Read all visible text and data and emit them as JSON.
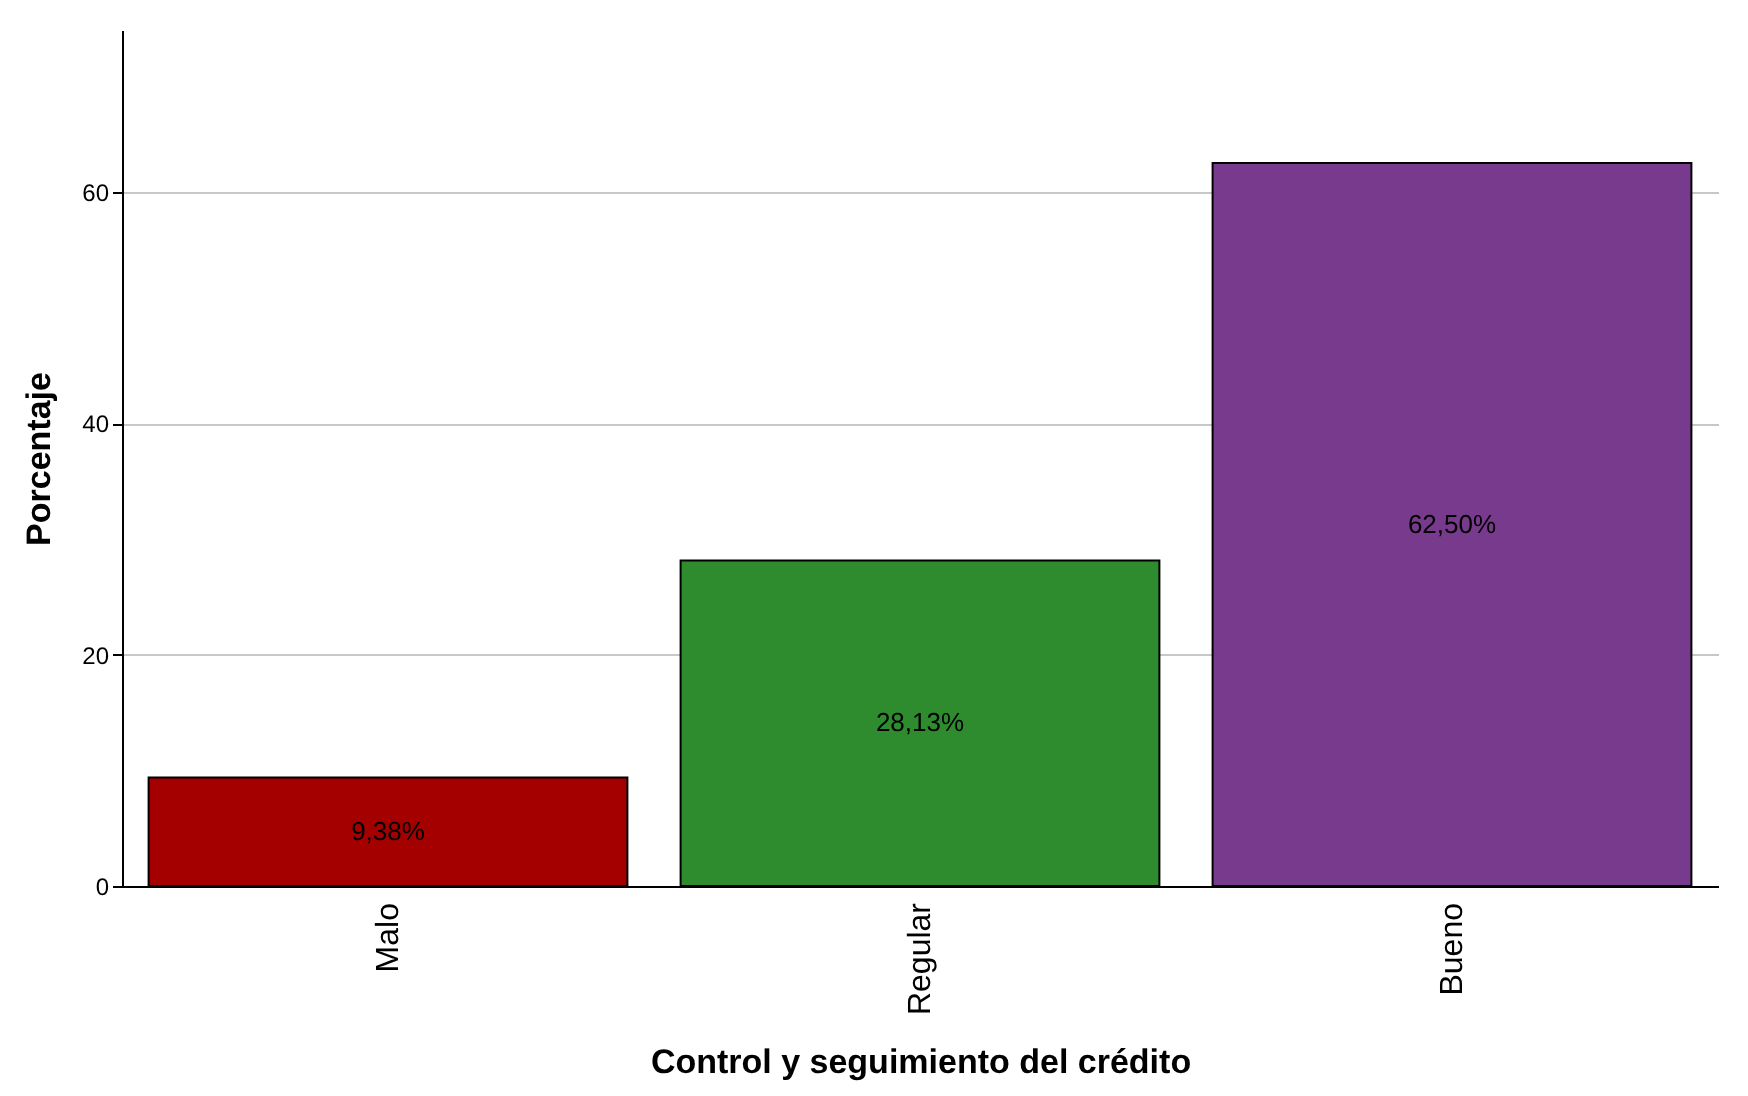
{
  "chart_data": {
    "type": "bar",
    "xlabel": "Control y seguimiento del crédito",
    "ylabel": "Porcentaje",
    "categories": [
      "Malo",
      "Regular",
      "Bueno"
    ],
    "values": [
      9.38,
      28.13,
      62.5
    ],
    "colors": [
      "#a50000",
      "#2e8b2e",
      "#783a8c"
    ],
    "value_labels": [
      "9,38%",
      "28,13%",
      "62,50%"
    ],
    "ylim": [
      0,
      74
    ],
    "yticks": [
      0,
      20,
      40,
      60
    ],
    "grid": "y"
  }
}
